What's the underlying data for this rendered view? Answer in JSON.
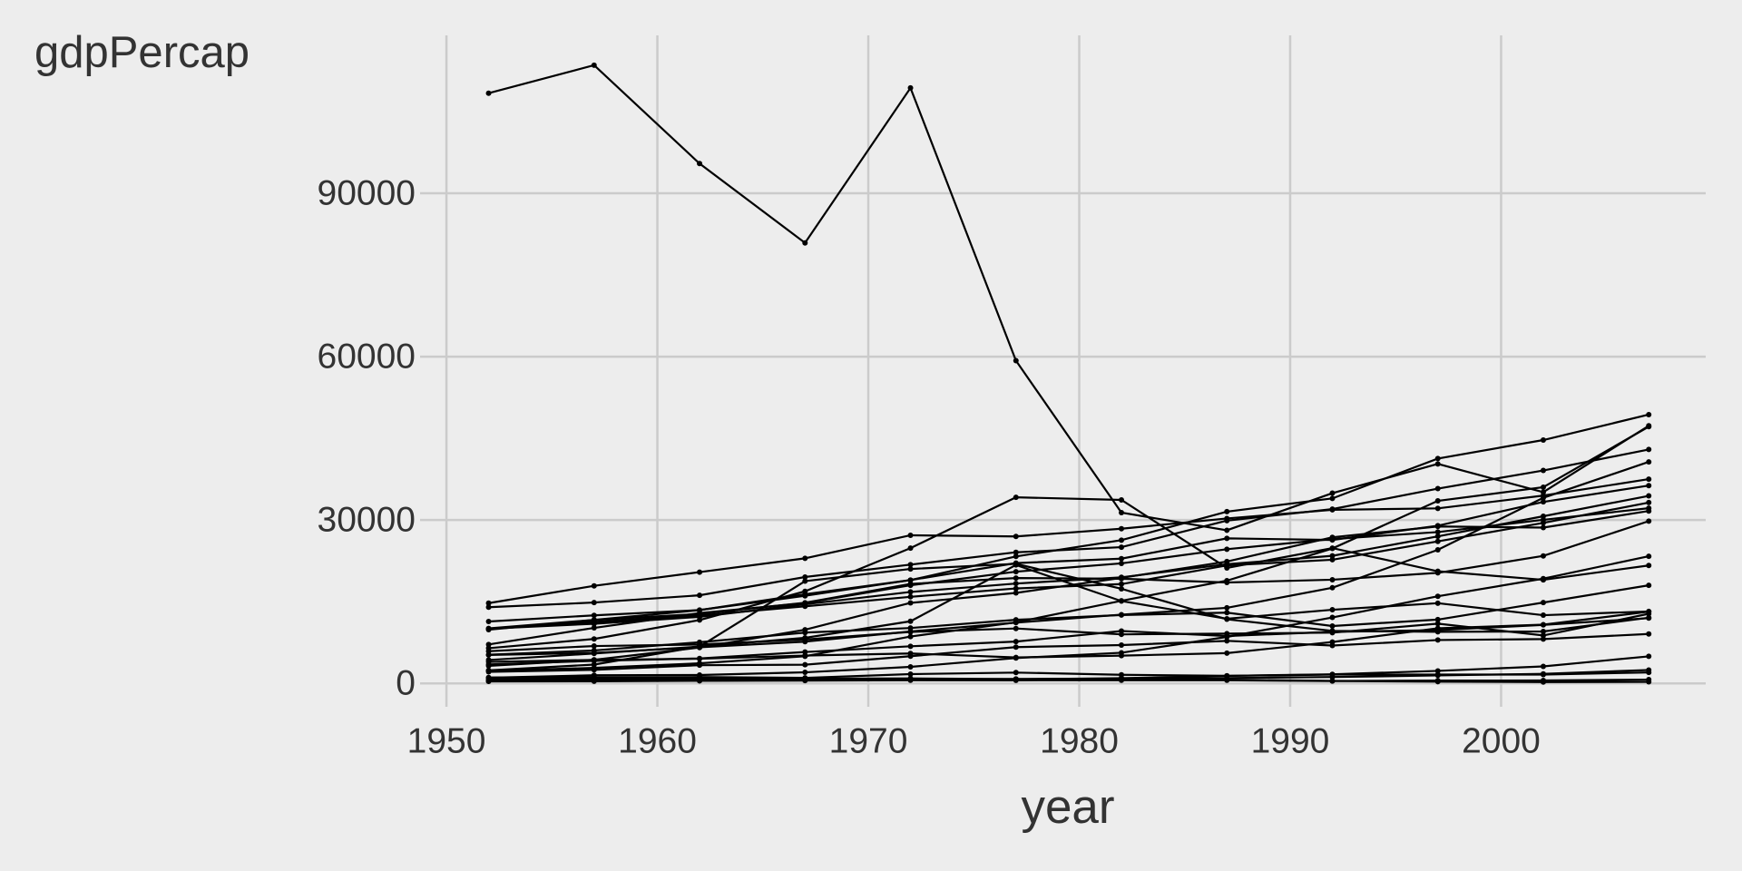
{
  "chart_data": {
    "type": "line",
    "y_label": "gdpPercap",
    "x_label": "year",
    "x": [
      1952,
      1957,
      1962,
      1967,
      1972,
      1977,
      1982,
      1987,
      1992,
      1997,
      2002,
      2007
    ],
    "color": "#000000",
    "grid": true,
    "xlim": [
      1948.75,
      2009.7
    ],
    "xticks": [
      1950,
      1960,
      1970,
      1980,
      1990,
      2000
    ],
    "ylim": [
      -4300,
      119000
    ],
    "yticks": [
      0,
      30000,
      60000,
      90000
    ],
    "series": [
      {
        "values": [
          108382,
          113523,
          95458,
          80895,
          109348,
          59265,
          31354,
          28118,
          34932,
          40301,
          35110,
          47307
        ]
      },
      {
        "values": [
          14734,
          17909,
          20431,
          22966,
          27195,
          26982,
          28398,
          30282,
          31871,
          32135,
          34481,
          37506
        ]
      },
      {
        "values": [
          10095,
          11654,
          13450,
          16362,
          18965,
          23311,
          26299,
          31541,
          33966,
          41283,
          44684,
          49357
        ]
      },
      {
        "values": [
          13990,
          14847,
          16173,
          19530,
          21806,
          24073,
          25010,
          29884,
          32004,
          35767,
          39097,
          42952
        ]
      },
      {
        "values": [
          6459,
          8157,
          11626,
          16903,
          24837,
          34168,
          33693,
          21199,
          24841,
          20586,
          19014,
          21655
        ]
      },
      {
        "values": [
          2315,
          2843,
          3675,
          4977,
          8597,
          11210,
          15169,
          18862,
          24770,
          33519,
          36023,
          47143
        ]
      },
      {
        "values": [
          3217,
          4318,
          6577,
          9848,
          14779,
          16610,
          19384,
          22376,
          26825,
          28817,
          28605,
          31656
        ]
      },
      {
        "values": [
          7144,
          10187,
          12902,
          14746,
          18016,
          20513,
          22032,
          24639,
          26505,
          27789,
          30036,
          32170
        ]
      },
      {
        "values": [
          2388,
          3448,
          6757,
          18773,
          21011,
          21951,
          17364,
          11770,
          9640,
          9467,
          9534,
          12057
        ]
      },
      {
        "values": [
          4293,
          5487,
          6757,
          8358,
          11401,
          21746,
          15113,
          11864,
          13522,
          14723,
          12522,
          13206
        ]
      },
      {
        "values": [
          5911,
          6857,
          7133,
          8053,
          9443,
          10079,
          8998,
          9140,
          9308,
          10967,
          8798,
          12779
        ]
      },
      {
        "values": [
          3478,
          4132,
          4582,
          5754,
          6809,
          7675,
          9611,
          8688,
          9472,
          9767,
          10742,
          11978
        ]
      },
      {
        "values": [
          2109,
          2487,
          3337,
          3430,
          4986,
          6660,
          7031,
          7807,
          6950,
          7958,
          8131,
          9066
        ]
      },
      {
        "values": [
          400,
          576,
          488,
          613,
          677,
          741,
          962,
          1379,
          1656,
          2289,
          3119,
          4959
        ]
      },
      {
        "values": [
          547,
          590,
          658,
          701,
          724,
          813,
          856,
          977,
          1164,
          1459,
          1747,
          2452
        ]
      },
      {
        "values": [
          362,
          379,
          467,
          516,
          566,
          557,
          578,
          573,
          422,
          516,
          531,
          691
        ]
      },
      {
        "values": [
          1077,
          1101,
          1151,
          1015,
          1698,
          1982,
          1577,
          1385,
          1620,
          1625,
          1615,
          2014
        ]
      },
      {
        "values": [
          9867,
          11636,
          12753,
          14805,
          18269,
          19340,
          19211,
          18524,
          19036,
          20292,
          23404,
          29796
        ]
      },
      {
        "values": [
          11367,
          12490,
          13462,
          16077,
          18971,
          22091,
          22899,
          26627,
          26343,
          28955,
          33329,
          36319
        ]
      },
      {
        "values": [
          10040,
          10950,
          12217,
          14526,
          16789,
          18334,
          19477,
          21889,
          23425,
          26998,
          30688,
          34435
        ]
      },
      {
        "values": [
          9980,
          11283,
          12477,
          14143,
          15895,
          17429,
          18232,
          21665,
          22705,
          26075,
          29479,
          33203
        ]
      },
      {
        "values": [
          5210,
          5599,
          6632,
          7656,
          9531,
          11151,
          12618,
          13873,
          17559,
          24522,
          34077,
          40676
        ]
      },
      {
        "values": [
          5264,
          6040,
          7550,
          9326,
          10168,
          11674,
          12546,
          12987,
          10536,
          11712,
          14843,
          18009
        ]
      },
      {
        "values": [
          1031,
          1488,
          1536,
          2029,
          3031,
          4657,
          5623,
          8533,
          12104,
          15994,
          19234,
          23348
        ]
      },
      {
        "values": [
          3940,
          4316,
          4520,
          5107,
          5494,
          4757,
          5096,
          5547,
          7596,
          10118,
          10779,
          13172
        ]
      },
      {
        "values": [
          781,
          906,
          896,
          862,
          905,
          796,
          673,
          672,
          458,
          313,
          241,
          278
        ]
      }
    ]
  }
}
